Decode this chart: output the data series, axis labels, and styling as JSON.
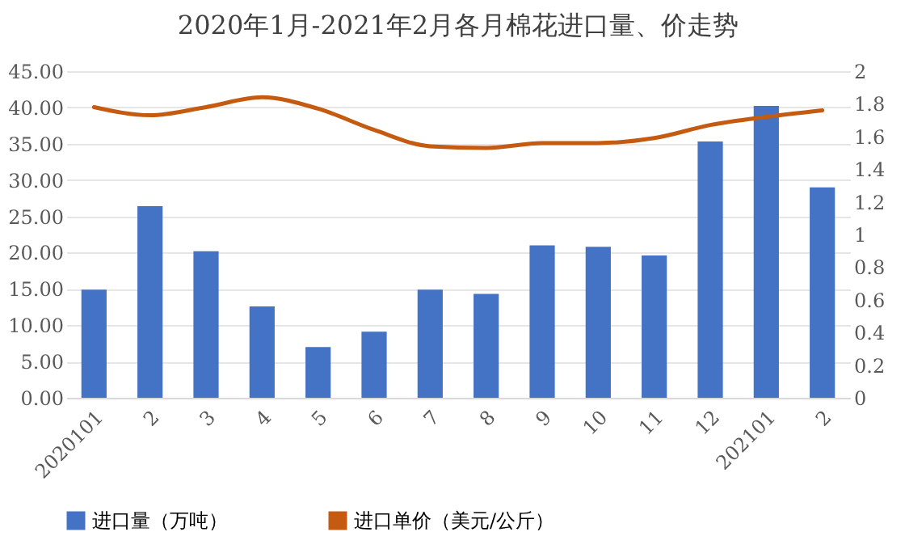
{
  "chart_data": {
    "type": "bar",
    "title": "2020年1月-2021年2月各月棉花进口量、价走势",
    "categories": [
      "2020101",
      "2",
      "3",
      "4",
      "5",
      "6",
      "7",
      "8",
      "9",
      "10",
      "11",
      "12",
      "202101",
      "2"
    ],
    "series": [
      {
        "name": "进口量（万吨）",
        "color": "#4472c4",
        "values": [
          14.9,
          26.4,
          20.2,
          12.6,
          7.0,
          9.1,
          14.9,
          14.3,
          21.0,
          20.8,
          19.6,
          35.3,
          40.2,
          29.0
        ]
      },
      {
        "name": "进口单价（美元/公斤）",
        "type": "line",
        "axis": "y2",
        "color": "#c55a11",
        "values": [
          1.78,
          1.73,
          1.78,
          1.84,
          1.77,
          1.64,
          1.54,
          1.53,
          1.56,
          1.56,
          1.59,
          1.67,
          1.72,
          1.76
        ]
      }
    ],
    "ylim": [
      0,
      45
    ],
    "yticks": [
      {
        "value": 0,
        "label": "0.00"
      },
      {
        "value": 5,
        "label": "5.00"
      },
      {
        "value": 10,
        "label": "10.00"
      },
      {
        "value": 15,
        "label": "15.00"
      },
      {
        "value": 20,
        "label": "20.00"
      },
      {
        "value": 25,
        "label": "25.00"
      },
      {
        "value": 30,
        "label": "30.00"
      },
      {
        "value": 35,
        "label": "35.00"
      },
      {
        "value": 40,
        "label": "40.00"
      },
      {
        "value": 45,
        "label": "45.00"
      }
    ],
    "y2lim": [
      0,
      2
    ],
    "y2ticks": [
      0,
      0.2,
      0.4,
      0.6,
      0.8,
      1,
      1.2,
      1.4,
      1.6,
      1.8,
      2
    ],
    "grid": "y",
    "legend": "bottom"
  }
}
